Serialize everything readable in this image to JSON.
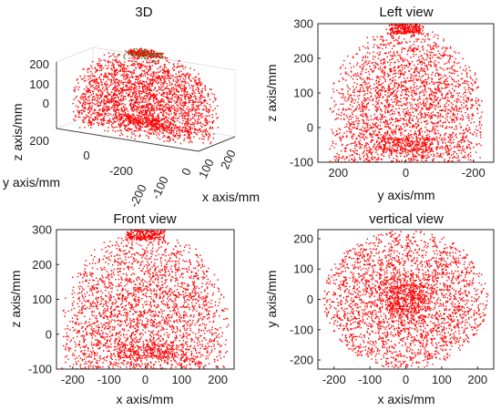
{
  "chart_data": [
    {
      "type": "scatter3d",
      "title": "3D",
      "xlabel": "x axis/mm",
      "ylabel": "y axis/mm",
      "zlabel": "z axis/mm",
      "xticks": [
        -200,
        -100,
        0,
        100,
        200
      ],
      "yticks": [
        -200,
        0,
        200
      ],
      "zticks": [
        0,
        100,
        200
      ],
      "xlim": [
        -230,
        230
      ],
      "ylim": [
        -230,
        230
      ],
      "zlim": [
        -100,
        300
      ],
      "grid": true,
      "point_color": "#ff0000",
      "accent_point_color": "#2e8b2e",
      "data_description": "hemispherical point cloud: x,y within about ±230 mm, z from about -100 to 300 mm"
    },
    {
      "type": "scatter",
      "title": "Left view",
      "xlabel": "y axis/mm",
      "ylabel": "z axis/mm",
      "xticks": [
        200,
        0,
        -200
      ],
      "yticks": [
        -100,
        0,
        100,
        200,
        300
      ],
      "xlim": [
        260,
        -260
      ],
      "ylim": [
        -100,
        300
      ],
      "x_reversed": true,
      "point_color": "#ff0000"
    },
    {
      "type": "scatter",
      "title": "Front view",
      "xlabel": "x axis/mm",
      "ylabel": "z axis/mm",
      "xticks": [
        -200,
        -100,
        0,
        100,
        200
      ],
      "yticks": [
        -100,
        0,
        100,
        200,
        300
      ],
      "xlim": [
        -245,
        245
      ],
      "ylim": [
        -100,
        300
      ],
      "point_color": "#ff0000"
    },
    {
      "type": "scatter",
      "title": "vertical view",
      "xlabel": "x axis/mm",
      "ylabel": "y axis/mm",
      "xticks": [
        -200,
        -100,
        0,
        100,
        200
      ],
      "yticks": [
        -200,
        -100,
        0,
        100,
        200
      ],
      "xlim": [
        -245,
        245
      ],
      "ylim": [
        -230,
        230
      ],
      "point_color": "#ff0000"
    }
  ]
}
